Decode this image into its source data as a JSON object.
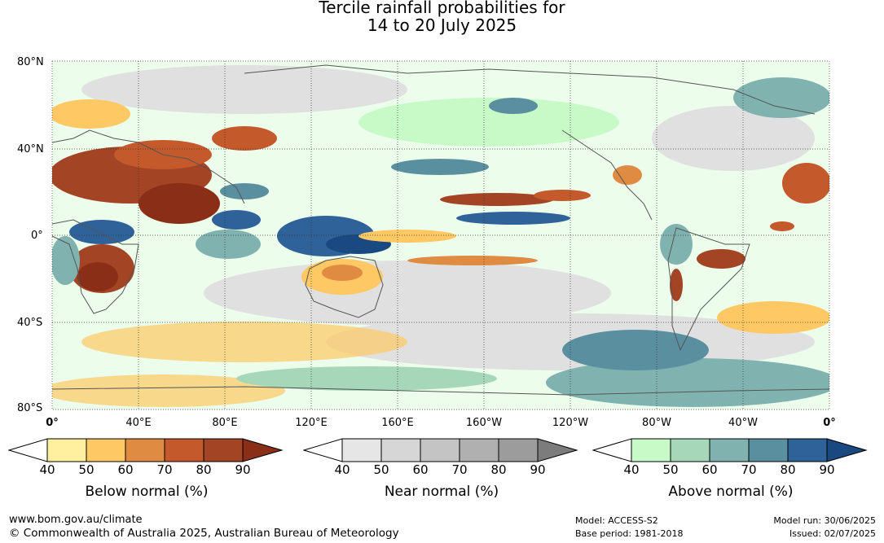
{
  "title_line1": "Tercile rainfall probabilities for",
  "title_line2": "14 to 20 July 2025",
  "lat_labels": [
    "80°N",
    "40°N",
    "0°",
    "40°S",
    "80°S"
  ],
  "lon_labels": [
    "0°",
    "40°E",
    "80°E",
    "120°E",
    "160°E",
    "160°W",
    "120°W",
    "80°W",
    "40°W",
    "0°"
  ],
  "colorbars": [
    {
      "caption": "Below normal (%)",
      "ticks": [
        "40",
        "50",
        "60",
        "70",
        "80",
        "90"
      ],
      "colors": [
        "#fff0a0",
        "#fec964",
        "#df8c42",
        "#c45a2c",
        "#a34424",
        "#8b2e18"
      ]
    },
    {
      "caption": "Near normal (%)",
      "ticks": [
        "40",
        "50",
        "60",
        "70",
        "80",
        "90"
      ],
      "colors": [
        "#e6e6e6",
        "#d6d6d6",
        "#c4c4c4",
        "#b0b0b0",
        "#9c9c9c",
        "#7c7c7c"
      ]
    },
    {
      "caption": "Above normal (%)",
      "ticks": [
        "40",
        "50",
        "60",
        "70",
        "80",
        "90"
      ],
      "colors": [
        "#c8fac8",
        "#a6d7b9",
        "#80b3b0",
        "#5a8fa0",
        "#30629a",
        "#1a4880"
      ]
    }
  ],
  "footer": {
    "url": "www.bom.gov.au/climate",
    "copyright": "© Commonwealth of Australia 2025, Australian Bureau of Meteorology",
    "model": "Model: ACCESS-S2",
    "base_period": "Base period: 1981-2018",
    "model_run": "Model run: 30/06/2025",
    "issued": "Issued: 02/07/2025"
  }
}
